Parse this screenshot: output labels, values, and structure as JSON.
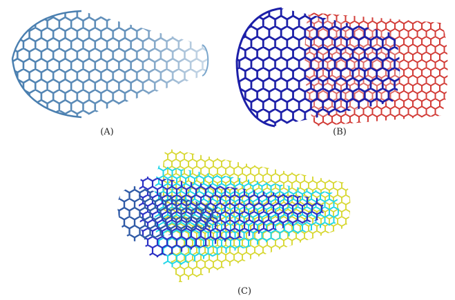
{
  "panels": [
    {
      "label": "(A)"
    },
    {
      "label": "(B)"
    },
    {
      "label": "(C)"
    }
  ],
  "colors": {
    "single_wall": "#4a7fb0",
    "double_inner": "#1c1fa8",
    "double_outer": "#d23b36",
    "multi_core": "#2f5aa6",
    "multi_inner": "#2a2fc4",
    "multi_mid": "#21d6e8",
    "multi_outer": "#d6d62a"
  }
}
